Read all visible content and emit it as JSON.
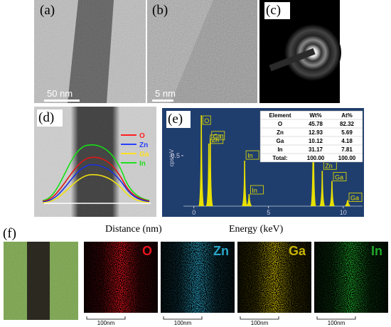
{
  "panels": {
    "a": {
      "label": "(a)",
      "scale": "50 nm"
    },
    "b": {
      "label": "(b)",
      "scale": "5 nm"
    },
    "c": {
      "label": "(c)"
    },
    "d": {
      "label": "(d)",
      "legend": [
        "O",
        "Zn",
        "Ga",
        "In"
      ]
    },
    "e": {
      "label": "(e)",
      "spectrum": {
        "ylabel": "cps/eV",
        "yticks": [
          0.5
        ],
        "xticks": [
          0,
          5,
          10
        ],
        "xlim": [
          -0.7,
          11.3
        ],
        "ylim": [
          0,
          0.95
        ],
        "peaks": [
          {
            "label": "O",
            "energy": 0.5,
            "height": 0.9
          },
          {
            "label": "Zn",
            "energy": 1.0,
            "height": 0.62
          },
          {
            "label": "Ga",
            "energy": 1.1,
            "height": 0.67
          },
          {
            "label": "In",
            "energy": 3.4,
            "height": 0.45
          },
          {
            "label": "In",
            "energy": 3.7,
            "height": 0.12
          },
          {
            "label": null,
            "energy": 8.0,
            "height": 0.9
          },
          {
            "label": "Zn",
            "energy": 8.6,
            "height": 0.35
          },
          {
            "label": "Ga",
            "energy": 9.25,
            "height": 0.25
          },
          {
            "label": "Ga",
            "energy": 10.3,
            "height": 0.06
          }
        ]
      },
      "table": {
        "header": [
          "Element",
          "Wt%",
          "At%"
        ],
        "rows": [
          [
            "O",
            "45.78",
            "82.32"
          ],
          [
            "Zn",
            "12.93",
            "5.69"
          ],
          [
            "Ga",
            "10.12",
            "4.18"
          ],
          [
            "In",
            "31.17",
            "7.81"
          ],
          [
            "Total:",
            "100.00",
            "100.00"
          ]
        ]
      }
    },
    "f": {
      "label": "(f)",
      "xlabel": "Distance (nm)",
      "elabel": "Energy (keV)",
      "maps": [
        {
          "element": "O",
          "color": "#e8141e"
        },
        {
          "element": "Zn",
          "color": "#2aa6c8"
        },
        {
          "element": "Ga",
          "color": "#c8b400"
        },
        {
          "element": "In",
          "color": "#1fa82a"
        }
      ],
      "scale": "100nm"
    }
  }
}
